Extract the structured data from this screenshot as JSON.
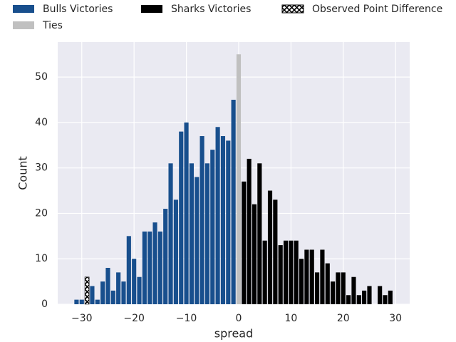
{
  "chart_data": {
    "type": "histogram",
    "xlabel": "spread",
    "ylabel": "Count",
    "xlim": [
      -34.6,
      32.7
    ],
    "ylim": [
      0,
      57.7
    ],
    "xticks": [
      {
        "value": -30,
        "label": "−30"
      },
      {
        "value": -20,
        "label": "−20"
      },
      {
        "value": -10,
        "label": "−10"
      },
      0,
      10,
      20,
      30
    ],
    "yticks": [
      0,
      10,
      20,
      30,
      40,
      50
    ],
    "grid": true,
    "legend": "top",
    "series": [
      {
        "name": "Bulls Victories",
        "color": "#184f8d",
        "bins": [
          -31.5,
          -30.5,
          -29.5,
          -28.5,
          -27.5,
          -26.5,
          -25.5,
          -24.5,
          -23.5,
          -22.5,
          -21.5,
          -20.5,
          -19.5,
          -18.5,
          -17.5,
          -16.5,
          -15.5,
          -14.5,
          -13.5,
          -12.5,
          -11.5,
          -10.5,
          -9.5,
          -8.5,
          -7.5,
          -6.5,
          -5.5,
          -4.5,
          -3.5,
          -2.5,
          -1.5,
          -0.5
        ],
        "values": [
          1,
          1,
          6,
          4,
          1,
          5,
          8,
          3,
          7,
          5,
          15,
          10,
          6,
          16,
          16,
          18,
          16,
          21,
          31,
          23,
          38,
          40,
          31,
          28,
          37,
          31,
          34,
          39,
          37,
          36,
          45
        ]
      },
      {
        "name": "Sharks Victories",
        "color": "#000000",
        "bins": [
          0.5,
          1.5,
          2.5,
          3.5,
          4.5,
          5.5,
          6.5,
          7.5,
          8.5,
          9.5,
          10.5,
          11.5,
          12.5,
          13.5,
          14.5,
          15.5,
          16.5,
          17.5,
          18.5,
          19.5,
          20.5,
          21.5,
          22.5,
          23.5,
          24.5,
          25.5,
          26.5,
          27.5,
          28.5,
          29.5
        ],
        "values": [
          27,
          32,
          22,
          31,
          14,
          25,
          23,
          13,
          14,
          14,
          14,
          10,
          12,
          12,
          7,
          12,
          9,
          5,
          7,
          7,
          2,
          6,
          2,
          3,
          4,
          0,
          4,
          2,
          3
        ]
      },
      {
        "name": "Observed Point Difference",
        "color": "#000000",
        "hatch": "x",
        "bins": [
          -29.5,
          -28.5
        ],
        "values": [
          6
        ]
      },
      {
        "name": "Ties",
        "color": "#c0c0c0",
        "bins": [
          -0.5,
          0.5
        ],
        "values": [
          55
        ]
      }
    ]
  }
}
